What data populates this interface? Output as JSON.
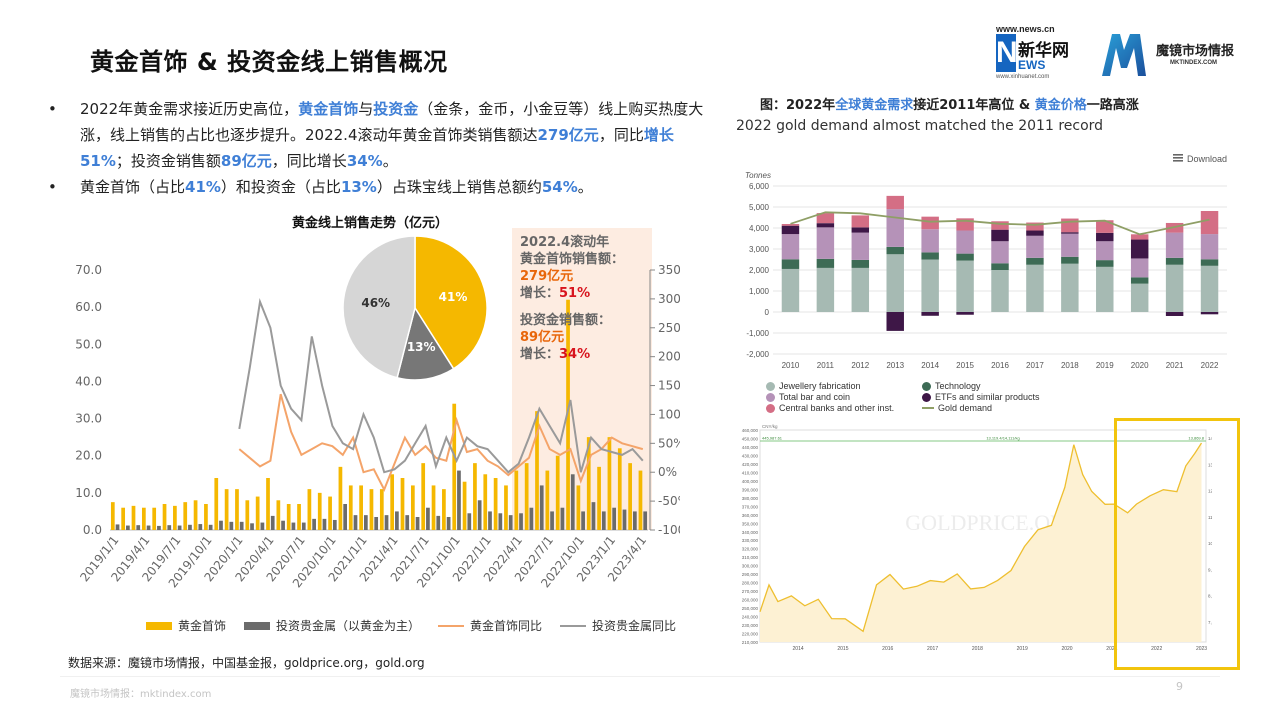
{
  "title": "黄金首饰 & 投资金线上销售概况",
  "logos": {
    "xinhua_url": "www.news.cn",
    "xinhua_n": "N",
    "xinhua_cn": "新华网",
    "xinhua_ews": "EWS",
    "xinhua_sub": "www.xinhuanet.com",
    "mk_name": "魔镜市场情报",
    "mk_url": "MKTINDEX.COM"
  },
  "bullets": {
    "b1_p1": "2022年黄金需求接近历史高位，",
    "b1_h1": "黄金首饰",
    "b1_p2": "与",
    "b1_h2": "投资金",
    "b1_p3": "（金条，金币，小金豆等）线上购买热度大涨，线上销售的占比也逐步提升。2022.4滚动年黄金首饰类销售额达",
    "b1_h3": "279亿元",
    "b1_p4": "，同比",
    "b1_h4": "增长51%",
    "b1_p5": "；投资金销售额",
    "b1_h5": "89亿元",
    "b1_p6": "，同比增长",
    "b1_h6": "34%",
    "b1_p7": "。",
    "b2_p1": "黄金首饰（占比",
    "b2_h1": "41%",
    "b2_p2": "）和投资金（占比",
    "b2_h2": "13%",
    "b2_p3": "）占珠宝线上销售总额约",
    "b2_h3": "54%",
    "b2_p4": "。"
  },
  "annotation": {
    "l1": "2022.4滚动年",
    "l2": "黄金首饰销售额：",
    "l3": "279亿元",
    "l4a": "增长：",
    "l4b": "51%",
    "l5": "投资金销售额：",
    "l6": "89亿元",
    "l7a": "增长：",
    "l7b": "34%"
  },
  "legend": {
    "jewelry": "黄金首饰",
    "investment": "投资贵金属（以黄金为主）",
    "jewelry_yoy": "黄金首饰同比",
    "investment_yoy": "投资贵金属同比"
  },
  "source": "数据来源：魔镜市场情报，中国基金报，goldprice.org，gold.org",
  "footer": {
    "left": "魔镜市场情报：mktindex.com",
    "page": "9"
  },
  "right": {
    "title_p1": "图：2022年",
    "title_h1": "全球黄金需求",
    "title_p2": "接近2011年高位 & ",
    "title_h2": "黄金价格",
    "title_p3": "一路高涨",
    "subtitle": "2022 gold demand almost matched the 2011 record"
  },
  "colors": {
    "jewelry_bar": "#f5b800",
    "invest_bar": "#6b6b6b",
    "jewelry_line": "#f4a46a",
    "invest_line": "#9a9a9a",
    "highlight": "#3f7fd6",
    "pie_jewelry": "#f5b800",
    "pie_invest": "#777777",
    "pie_other": "#d6d6d6",
    "dd_jewellery": "#a6bab3",
    "dd_tech": "#3d6b55",
    "dd_bar": "#b592b8",
    "dd_etf": "#3e1747",
    "dd_cb": "#d46e85",
    "dd_line": "#8f9f66",
    "price_line": "#eebf30",
    "price_fill": "#fdf1d3",
    "box": "#f2c40d"
  },
  "chart_data": [
    {
      "type": "bar",
      "title": "黄金线上销售走势（亿元）",
      "categories": [
        "2019/1/1",
        "2019/2/1",
        "2019/3/1",
        "2019/4/1",
        "2019/5/1",
        "2019/6/1",
        "2019/7/1",
        "2019/8/1",
        "2019/9/1",
        "2019/10/1",
        "2019/11/1",
        "2019/12/1",
        "2020/1/1",
        "2020/2/1",
        "2020/3/1",
        "2020/4/1",
        "2020/5/1",
        "2020/6/1",
        "2020/7/1",
        "2020/8/1",
        "2020/9/1",
        "2020/10/1",
        "2020/11/1",
        "2020/12/1",
        "2021/1/1",
        "2021/2/1",
        "2021/3/1",
        "2021/4/1",
        "2021/5/1",
        "2021/6/1",
        "2021/7/1",
        "2021/8/1",
        "2021/9/1",
        "2021/10/1",
        "2021/11/1",
        "2021/12/1",
        "2022/1/1",
        "2022/2/1",
        "2022/3/1",
        "2022/4/1",
        "2022/5/1",
        "2022/6/1",
        "2022/7/1",
        "2022/8/1",
        "2022/9/1",
        "2022/10/1",
        "2022/11/1",
        "2022/12/1",
        "2023/1/1",
        "2023/2/1",
        "2023/3/1",
        "2023/4/1"
      ],
      "x_tick_labels": [
        "2019/1/1",
        "2019/4/1",
        "2019/7/1",
        "2019/10/1",
        "2020/1/1",
        "2020/4/1",
        "2020/7/1",
        "2020/10/1",
        "2021/1/1",
        "2021/4/1",
        "2021/7/1",
        "2021/10/1",
        "2022/1/1",
        "2022/4/1",
        "2022/7/1",
        "2022/10/1",
        "2023/1/1",
        "2023/4/1"
      ],
      "series": [
        {
          "name": "黄金首饰",
          "axis": "left",
          "values": [
            7.5,
            6,
            6.5,
            6,
            6,
            7,
            6.5,
            7.5,
            8,
            7,
            14,
            11,
            11,
            8,
            9,
            14,
            8,
            7,
            7,
            11,
            10,
            9,
            17,
            12,
            12,
            11,
            11,
            15,
            14,
            12,
            18,
            12,
            11,
            34,
            13,
            18,
            15,
            14,
            12,
            16,
            18,
            32,
            16,
            20,
            62,
            12,
            25,
            17,
            25,
            22,
            18,
            16
          ]
        },
        {
          "name": "投资贵金属（以黄金为主）",
          "axis": "left",
          "values": [
            1.5,
            1.2,
            1.3,
            1.2,
            1.1,
            1.3,
            1.2,
            1.4,
            1.6,
            1.4,
            2.5,
            2.2,
            2.2,
            1.8,
            2,
            3.8,
            2.5,
            2,
            2,
            3,
            3,
            2.7,
            7,
            4,
            4,
            3.5,
            4,
            5,
            4,
            3.5,
            6,
            3.8,
            3.5,
            16,
            4.5,
            8,
            5,
            4.5,
            4,
            4.5,
            6,
            12,
            5,
            6,
            15,
            5,
            7.5,
            5,
            6,
            5.5,
            5,
            5
          ]
        },
        {
          "name": "黄金首饰同比",
          "axis": "right",
          "values": [
            null,
            null,
            null,
            null,
            null,
            null,
            null,
            null,
            null,
            null,
            null,
            null,
            40,
            25,
            10,
            20,
            135,
            70,
            30,
            40,
            50,
            45,
            30,
            60,
            0,
            5,
            -30,
            15,
            60,
            30,
            45,
            25,
            20,
            90,
            35,
            40,
            20,
            10,
            -5,
            10,
            25,
            80,
            40,
            30,
            40,
            -15,
            30,
            40,
            60,
            50,
            45,
            40
          ]
        },
        {
          "name": "投资贵金属同比",
          "axis": "right",
          "values": [
            null,
            null,
            null,
            null,
            null,
            null,
            null,
            null,
            null,
            null,
            null,
            null,
            75,
            180,
            295,
            250,
            150,
            110,
            90,
            235,
            150,
            80,
            50,
            40,
            100,
            60,
            0,
            5,
            20,
            50,
            80,
            10,
            60,
            20,
            60,
            45,
            40,
            20,
            0,
            15,
            60,
            110,
            80,
            50,
            125,
            0,
            60,
            40,
            35,
            30,
            40,
            20
          ]
        }
      ],
      "ylim_left": [
        0,
        70
      ],
      "ylim_right": [
        -100,
        350
      ],
      "yticks_left": [
        "0.0",
        "10.0",
        "20.0",
        "30.0",
        "40.0",
        "50.0",
        "60.0",
        "70.0"
      ],
      "yticks_right": [
        "-100%",
        "-50%",
        "0%",
        "50%",
        "100%",
        "150%",
        "200%",
        "250%",
        "300%",
        "350%"
      ],
      "legend": "bottom"
    },
    {
      "type": "pie",
      "slices": [
        {
          "label": "41%",
          "value": 41
        },
        {
          "label": "13%",
          "value": 13
        },
        {
          "label": "46%",
          "value": 46
        }
      ]
    },
    {
      "type": "bar",
      "stacked": true,
      "ylabel": "Tonnes",
      "download_label": "Download",
      "categories": [
        "2010",
        "2011",
        "2012",
        "2013",
        "2014",
        "2015",
        "2016",
        "2017",
        "2018",
        "2019",
        "2020",
        "2021",
        "2022"
      ],
      "yticks": [
        "-2,000",
        "-1,000",
        "0",
        "1,000",
        "2,000",
        "3,000",
        "4,000",
        "5,000",
        "6,000"
      ],
      "ylim": [
        -2000,
        6000
      ],
      "series": [
        {
          "name": "Jewellery fabrication",
          "values": [
            2050,
            2100,
            2100,
            2750,
            2500,
            2450,
            2000,
            2250,
            2300,
            2150,
            1350,
            2250,
            2200
          ]
        },
        {
          "name": "Technology",
          "values": [
            460,
            430,
            380,
            350,
            340,
            330,
            320,
            330,
            330,
            320,
            300,
            330,
            310
          ]
        },
        {
          "name": "Total bar and coin",
          "values": [
            1200,
            1500,
            1300,
            1800,
            1100,
            1100,
            1050,
            1050,
            1100,
            900,
            900,
            1200,
            1200
          ]
        },
        {
          "name": "ETFs and similar products",
          "values": [
            400,
            200,
            250,
            -900,
            -180,
            -130,
            550,
            250,
            70,
            400,
            900,
            -190,
            -110
          ]
        },
        {
          "name": "Central banks and other inst.",
          "values": [
            80,
            480,
            570,
            630,
            600,
            580,
            400,
            380,
            650,
            600,
            250,
            460,
            1100
          ]
        },
        {
          "name": "Gold demand",
          "type": "line",
          "values": [
            4200,
            4750,
            4700,
            4500,
            4300,
            4350,
            4200,
            4150,
            4300,
            4350,
            3700,
            4050,
            4400
          ]
        }
      ],
      "legend": "bottom"
    },
    {
      "type": "area",
      "xlabel_ticks": [
        "2014",
        "2015",
        "2016",
        "2017",
        "2018",
        "2019",
        "2020",
        "2021",
        "2022",
        "2023"
      ],
      "yticks_left": [
        "210,000",
        "220,000",
        "230,000",
        "240,000",
        "250,000",
        "260,000",
        "270,000",
        "280,000",
        "290,000",
        "300,000",
        "310,000",
        "320,000",
        "330,000",
        "340,000",
        "350,000",
        "360,000",
        "370,000",
        "380,000",
        "390,000",
        "400,000",
        "410,000",
        "420,000",
        "430,000",
        "440,000",
        "450,000",
        "460,000"
      ],
      "yticks_right": [
        "7,000",
        "8,000",
        "9,000",
        "10,000",
        "11,000",
        "12,000",
        "13,000",
        "14,000"
      ],
      "ylim_left": [
        210000,
        460000
      ],
      "unit_label": "CNY/kg",
      "ref_line_labels": [
        "445,987.61",
        "13,119.4/14,111/kg",
        "13,869.8"
      ],
      "watermark": "GOLDPRICE.ORG",
      "x": [
        2013.6,
        2013.8,
        2014.0,
        2014.3,
        2014.6,
        2014.9,
        2015.2,
        2015.5,
        2015.9,
        2016.2,
        2016.5,
        2016.8,
        2017.1,
        2017.4,
        2017.7,
        2018.0,
        2018.3,
        2018.6,
        2018.9,
        2019.2,
        2019.5,
        2019.8,
        2020.1,
        2020.4,
        2020.6,
        2020.8,
        2021.0,
        2021.3,
        2021.5,
        2021.8,
        2022.0,
        2022.3,
        2022.6,
        2022.9,
        2023.1,
        2023.3,
        2023.45
      ],
      "values": [
        248000,
        275000,
        260000,
        262000,
        255000,
        258000,
        240000,
        235000,
        225000,
        275000,
        292000,
        270000,
        278000,
        280000,
        283000,
        288000,
        275000,
        272000,
        285000,
        292000,
        325000,
        340000,
        350000,
        390000,
        445000,
        405000,
        390000,
        370000,
        375000,
        360000,
        375000,
        380000,
        392000,
        385000,
        420000,
        430000,
        447000
      ]
    }
  ]
}
